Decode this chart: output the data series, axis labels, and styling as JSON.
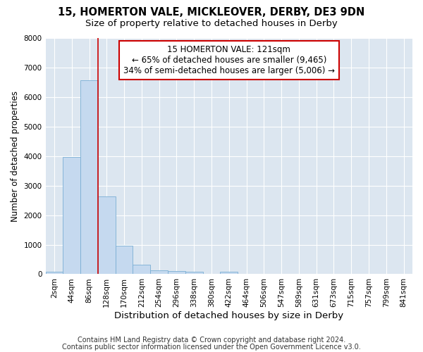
{
  "title1": "15, HOMERTON VALE, MICKLEOVER, DERBY, DE3 9DN",
  "title2": "Size of property relative to detached houses in Derby",
  "xlabel": "Distribution of detached houses by size in Derby",
  "ylabel": "Number of detached properties",
  "categories": [
    "2sqm",
    "44sqm",
    "86sqm",
    "128sqm",
    "170sqm",
    "212sqm",
    "254sqm",
    "296sqm",
    "338sqm",
    "380sqm",
    "422sqm",
    "464sqm",
    "506sqm",
    "547sqm",
    "589sqm",
    "631sqm",
    "673sqm",
    "715sqm",
    "757sqm",
    "799sqm",
    "841sqm"
  ],
  "values": [
    80,
    3970,
    6570,
    2640,
    960,
    330,
    130,
    110,
    80,
    0,
    80,
    0,
    0,
    0,
    0,
    0,
    0,
    0,
    0,
    0,
    0
  ],
  "bar_color": "#c5d9ef",
  "bar_edge_color": "#7aafd4",
  "vline_color": "#cc0000",
  "annotation_text": "15 HOMERTON VALE: 121sqm\n← 65% of detached houses are smaller (9,465)\n34% of semi-detached houses are larger (5,006) →",
  "annotation_box_color": "white",
  "annotation_box_edge_color": "#cc0000",
  "footnote1": "Contains HM Land Registry data © Crown copyright and database right 2024.",
  "footnote2": "Contains public sector information licensed under the Open Government Licence v3.0.",
  "bg_color": "#ffffff",
  "plot_bg_color": "#dce6f0",
  "grid_color": "#ffffff",
  "ylim": [
    0,
    8000
  ],
  "title1_fontsize": 10.5,
  "title2_fontsize": 9.5,
  "xlabel_fontsize": 9.5,
  "ylabel_fontsize": 8.5,
  "tick_fontsize": 7.5,
  "annotation_fontsize": 8.5,
  "footnote_fontsize": 7
}
